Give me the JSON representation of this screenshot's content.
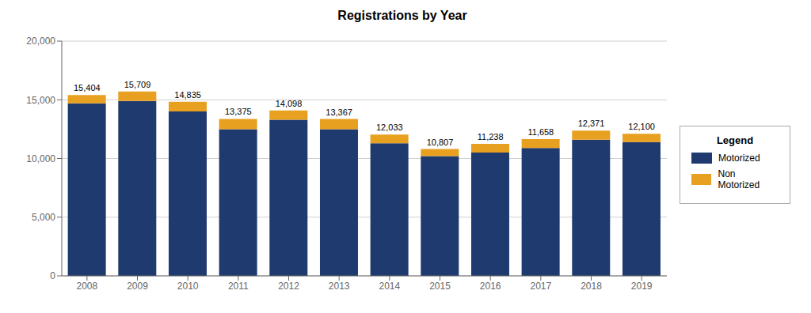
{
  "chart_data": {
    "type": "bar",
    "title": "Registrations by Year",
    "categories": [
      "2008",
      "2009",
      "2010",
      "2011",
      "2012",
      "2013",
      "2014",
      "2015",
      "2016",
      "2017",
      "2018",
      "2019"
    ],
    "stacked": true,
    "series": [
      {
        "name": "Motorized",
        "color": "#1f3a6e",
        "values": [
          14700,
          14900,
          14000,
          12500,
          13300,
          12500,
          11300,
          10200,
          10500,
          10900,
          11600,
          11400
        ]
      },
      {
        "name": "Non Motorized",
        "color": "#e8a020",
        "values": [
          704,
          809,
          835,
          875,
          798,
          867,
          733,
          607,
          738,
          758,
          771,
          700
        ]
      }
    ],
    "totals": [
      15404,
      15709,
      14835,
      13375,
      14098,
      13367,
      12033,
      10807,
      11238,
      11658,
      12371,
      12100
    ],
    "total_labels": [
      "15,404",
      "15,709",
      "14,835",
      "13,375",
      "14,098",
      "13,367",
      "12,033",
      "10,807",
      "11,238",
      "11,658",
      "12,371",
      "12,100"
    ],
    "ylim": [
      0,
      20000
    ],
    "yticks": [
      0,
      {
        "value": 5000,
        "label": "5,000"
      },
      {
        "value": 10000,
        "label": "10,000"
      },
      {
        "value": 15000,
        "label": "15,000"
      },
      {
        "value": 20000,
        "label": "20,000"
      }
    ],
    "grid": true,
    "legend": "right",
    "legend_title": "Legend"
  }
}
